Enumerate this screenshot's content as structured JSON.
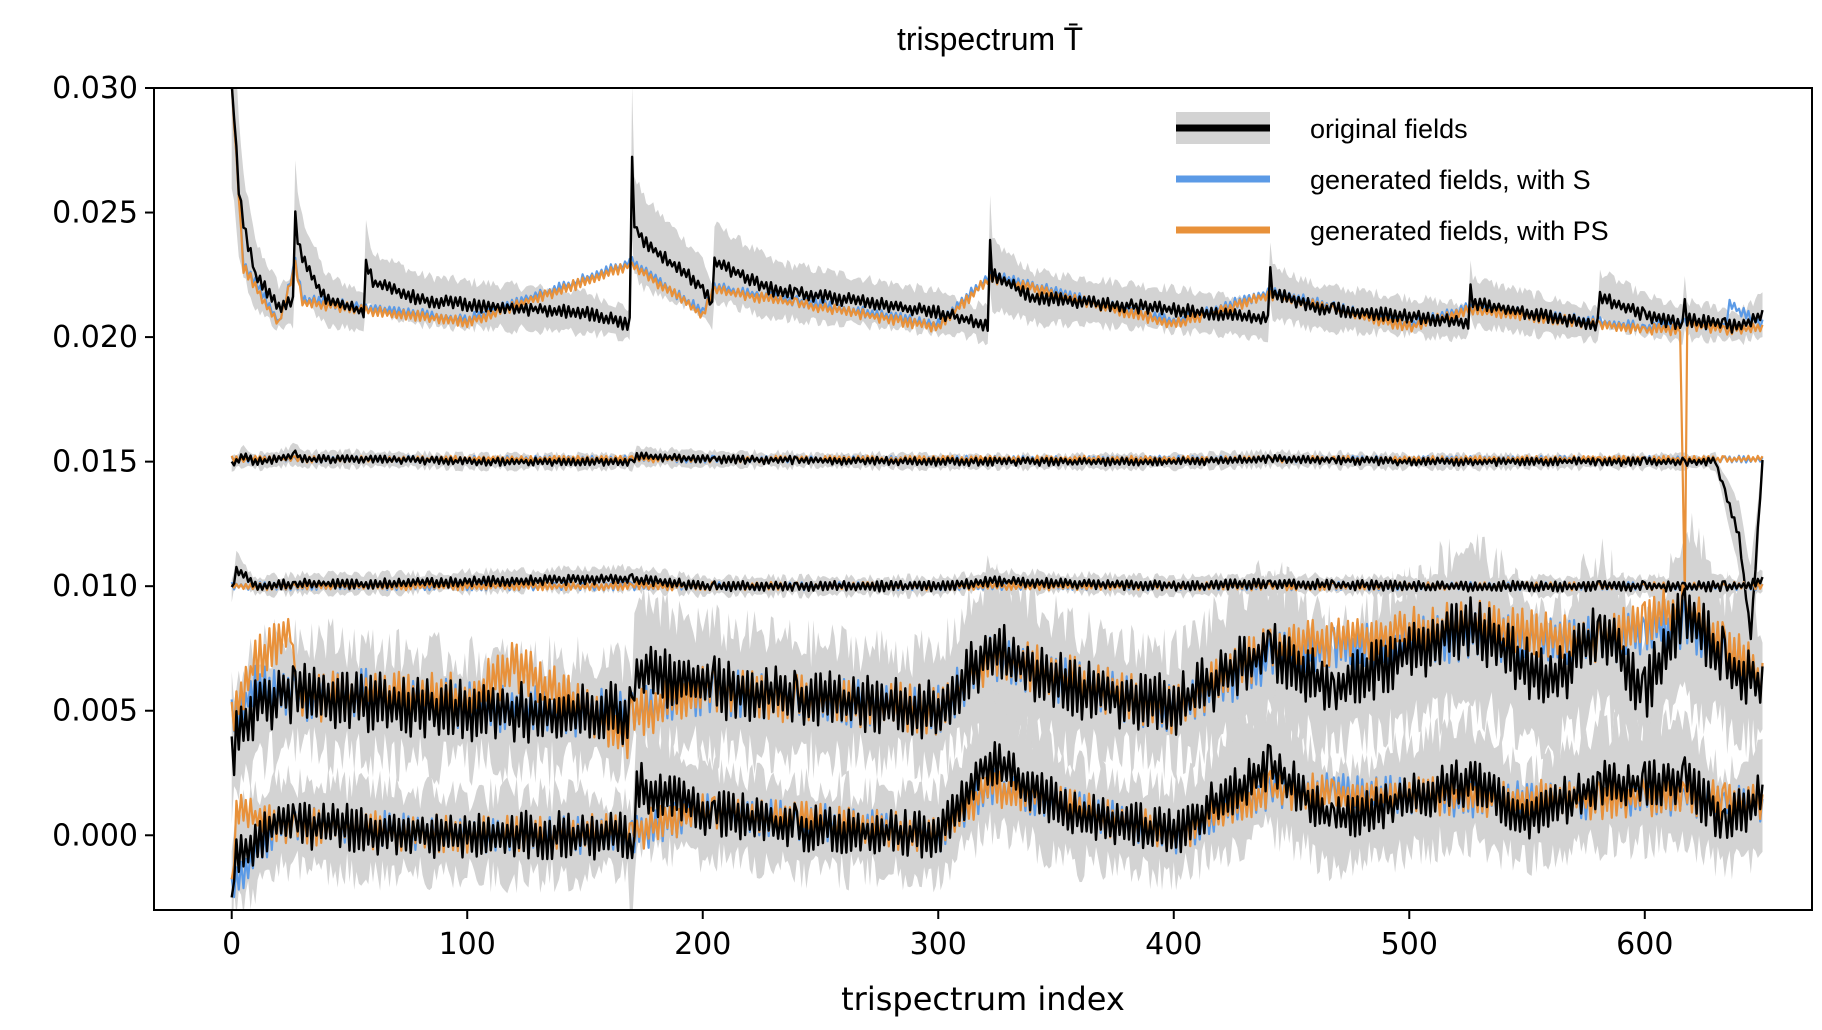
{
  "chart_data": {
    "type": "line",
    "title": "trispectrum T̄",
    "xlabel": "trispectrum index",
    "ylabel": "",
    "xlim": [
      -33,
      671
    ],
    "ylim": [
      -0.003,
      0.03
    ],
    "xticks": [
      0,
      100,
      200,
      300,
      400,
      500,
      600
    ],
    "xtick_labels": [
      "0",
      "100",
      "200",
      "300",
      "400",
      "500",
      "600"
    ],
    "yticks": [
      0.0,
      0.005,
      0.01,
      0.015,
      0.02,
      0.025,
      0.03
    ],
    "ytick_labels": [
      "0.000",
      "0.005",
      "0.010",
      "0.015",
      "0.020",
      "0.025",
      "0.030"
    ],
    "grid": false,
    "legend_position": "top-right",
    "legend": [
      {
        "label": "original fields",
        "color": "#000000",
        "band_color": "#d3d3d3"
      },
      {
        "label": "generated fields, with S",
        "color": "#5b9ae6"
      },
      {
        "label": "generated fields, with PS",
        "color": "#e8913a"
      }
    ],
    "n_points": 651,
    "block_starts": [
      0,
      27,
      57,
      87,
      117,
      147,
      170,
      205,
      240,
      270,
      300,
      322,
      358,
      390,
      420,
      441,
      468,
      500,
      526,
      550,
      581,
      600,
      617,
      634
    ],
    "bands": [
      {
        "name": "band-0.020",
        "offset": 0.02,
        "series": [
          {
            "name": "original fields",
            "x": [
              0,
              1,
              3,
              5,
              10,
              20,
              26,
              27,
              28,
              30,
              40,
              56,
              57,
              60,
              80,
              100,
              150,
              169,
              170,
              171,
              175,
              200,
              204,
              205,
              230,
              300,
              321,
              322,
              323,
              340,
              400,
              440,
              441,
              442,
              460,
              525,
              526,
              527,
              560,
              580,
              581,
              600,
              616,
              617,
              618,
              634,
              640,
              650
            ],
            "y": [
              0.03,
              0.029,
              0.026,
              0.0245,
              0.0225,
              0.0212,
              0.0215,
              0.0248,
              0.024,
              0.0232,
              0.0215,
              0.021,
              0.023,
              0.0222,
              0.0215,
              0.0213,
              0.021,
              0.0205,
              0.027,
              0.0245,
              0.0238,
              0.022,
              0.0212,
              0.023,
              0.0219,
              0.021,
              0.0205,
              0.0238,
              0.0225,
              0.0216,
              0.0211,
              0.0207,
              0.0226,
              0.0218,
              0.0212,
              0.0206,
              0.022,
              0.0214,
              0.0208,
              0.0205,
              0.0216,
              0.0209,
              0.0205,
              0.0214,
              0.0207,
              0.0205,
              0.0204,
              0.0209
            ]
          },
          {
            "name": "generated fields, with S",
            "x": [
              0,
              5,
              20,
              27,
              30,
              57,
              100,
              170,
              200,
              205,
              300,
              322,
              400,
              441,
              500,
              526,
              600,
              617,
              634,
              636,
              650
            ],
            "y": [
              0.03,
              0.023,
              0.0206,
              0.023,
              0.0215,
              0.0212,
              0.0207,
              0.023,
              0.021,
              0.022,
              0.0205,
              0.0225,
              0.0206,
              0.0218,
              0.0205,
              0.0212,
              0.0204,
              0.0206,
              0.0203,
              0.0213,
              0.0205
            ]
          },
          {
            "name": "generated fields, with PS",
            "x": [
              0,
              5,
              20,
              27,
              30,
              57,
              100,
              170,
              200,
              205,
              300,
              322,
              400,
              441,
              500,
              526,
              600,
              615,
              617,
              618,
              634,
              650
            ],
            "y": [
              0.03,
              0.0228,
              0.0205,
              0.0229,
              0.0214,
              0.0211,
              0.0206,
              0.0229,
              0.0209,
              0.0219,
              0.0204,
              0.0224,
              0.0205,
              0.0217,
              0.0204,
              0.0211,
              0.0203,
              0.0203,
              0.0095,
              0.0205,
              0.0203,
              0.0204
            ]
          }
        ]
      },
      {
        "name": "band-0.015",
        "offset": 0.015,
        "series": [
          {
            "name": "original fields",
            "x": [
              0,
              5,
              10,
              20,
              27,
              30,
              60,
              100,
              170,
              172,
              200,
              300,
              322,
              400,
              441,
              500,
              600,
              630,
              640,
              645,
              650
            ],
            "y": [
              0.0149,
              0.0152,
              0.015,
              0.0151,
              0.0153,
              0.0151,
              0.0151,
              0.015,
              0.015,
              0.0152,
              0.0151,
              0.015,
              0.015,
              0.015,
              0.0151,
              0.015,
              0.015,
              0.015,
              0.012,
              0.008,
              0.015
            ]
          },
          {
            "name": "generated fields, with S",
            "x": [
              0,
              650
            ],
            "y": [
              0.0151,
              0.0151
            ]
          },
          {
            "name": "generated fields, with PS",
            "x": [
              0,
              650
            ],
            "y": [
              0.0151,
              0.0151
            ]
          }
        ]
      },
      {
        "name": "band-0.010",
        "offset": 0.01,
        "series": [
          {
            "name": "original fields",
            "x": [
              0,
              2,
              10,
              30,
              60,
              170,
              200,
              300,
              322,
              400,
              441,
              500,
              526,
              540,
              560,
              581,
              600,
              617,
              634,
              640,
              650
            ],
            "y": [
              0.0098,
              0.0107,
              0.01,
              0.0101,
              0.0101,
              0.0103,
              0.01,
              0.01,
              0.0102,
              0.01,
              0.0101,
              0.01,
              0.01,
              0.01,
              0.01,
              0.01,
              0.01,
              0.01,
              0.01,
              0.01,
              0.0102
            ]
          },
          {
            "name": "generated fields, with S",
            "x": [
              0,
              650
            ],
            "y": [
              0.01,
              0.01
            ]
          },
          {
            "name": "generated fields, with PS",
            "x": [
              0,
              650
            ],
            "y": [
              0.01,
              0.01
            ]
          }
        ]
      },
      {
        "name": "band-0.005",
        "offset": 0.005,
        "series": [
          {
            "name": "original fields",
            "x": [
              0,
              10,
              27,
              60,
              100,
              170,
              171,
              200,
              240,
              300,
              322,
              358,
              400,
              441,
              468,
              526,
              560,
              581,
              600,
              617,
              634,
              650
            ],
            "y": [
              0.0035,
              0.0052,
              0.0058,
              0.0053,
              0.005,
              0.0049,
              0.0066,
              0.006,
              0.0055,
              0.0051,
              0.0075,
              0.0058,
              0.0052,
              0.0075,
              0.0058,
              0.0085,
              0.006,
              0.0082,
              0.0058,
              0.009,
              0.007,
              0.006
            ]
          },
          {
            "name": "generated fields, with S",
            "x": [
              0,
              10,
              27,
              60,
              100,
              170,
              200,
              300,
              322,
              400,
              441,
              526,
              581,
              617,
              650
            ],
            "y": [
              0.0045,
              0.006,
              0.0055,
              0.0057,
              0.0052,
              0.0048,
              0.0058,
              0.005,
              0.007,
              0.005,
              0.0072,
              0.008,
              0.0078,
              0.0085,
              0.006
            ]
          },
          {
            "name": "generated fields, with PS",
            "x": [
              0,
              10,
              25,
              27,
              60,
              100,
              120,
              168,
              170,
              200,
              300,
              322,
              400,
              441,
              526,
              581,
              617,
              650
            ],
            "y": [
              0.0045,
              0.007,
              0.0083,
              0.0055,
              0.0057,
              0.0055,
              0.0068,
              0.004,
              0.0048,
              0.0058,
              0.005,
              0.0072,
              0.005,
              0.0075,
              0.0085,
              0.0078,
              0.0092,
              0.0062
            ]
          }
        ]
      },
      {
        "name": "band-0.000",
        "offset": 0.0,
        "series": [
          {
            "name": "original fields",
            "x": [
              0,
              1,
              20,
              60,
              100,
              168,
              170,
              172,
              200,
              240,
              300,
              322,
              358,
              400,
              441,
              468,
              526,
              550,
              581,
              617,
              634,
              650
            ],
            "y": [
              -0.003,
              -0.001,
              0.0005,
              0.0002,
              0.0,
              0.0,
              -0.0015,
              0.002,
              0.001,
              0.0003,
              0.0,
              0.003,
              0.0008,
              0.0001,
              0.0028,
              0.0006,
              0.0022,
              0.0007,
              0.002,
              0.0022,
              0.0005,
              0.0016
            ]
          },
          {
            "name": "generated fields, with S",
            "x": [
              0,
              20,
              100,
              170,
              200,
              300,
              322,
              400,
              441,
              526,
              581,
              617,
              650
            ],
            "y": [
              -0.002,
              0.0005,
              0.0,
              0.0,
              0.001,
              0.0,
              0.002,
              0.0,
              0.0018,
              0.0015,
              0.0014,
              0.0015,
              0.0012
            ]
          },
          {
            "name": "generated fields, with PS",
            "x": [
              0,
              2,
              20,
              100,
              170,
              200,
              300,
              322,
              400,
              441,
              526,
              581,
              617,
              650
            ],
            "y": [
              -0.0022,
              0.001,
              0.0004,
              0.0,
              0.0001,
              0.001,
              0.0,
              0.002,
              0.0,
              0.0018,
              0.0015,
              0.0014,
              0.0016,
              0.0012
            ]
          }
        ]
      }
    ]
  }
}
